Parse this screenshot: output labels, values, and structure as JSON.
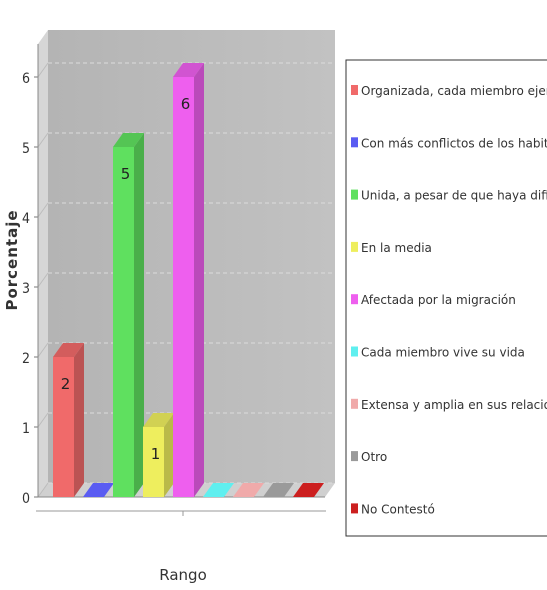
{
  "chart_data": {
    "type": "bar",
    "style": "3d-columns",
    "title": "",
    "xlabel": "Rango",
    "ylabel": "Porcentaje",
    "ylim": [
      0,
      6
    ],
    "yticks": [
      0,
      1,
      2,
      3,
      4,
      5,
      6
    ],
    "grid": true,
    "legend_position": "right",
    "categories": [
      "Organizada, cada miembro ejerce su función",
      "Con más conflictos de los habituales",
      "Unida, a pesar de que haya dificultades",
      "En la media",
      "Afectada por la migración",
      "Cada miembro vive su vida",
      "Extensa y amplia en sus relaciones",
      "Otro",
      "No Contestó"
    ],
    "values": [
      2,
      0,
      5,
      1,
      6,
      0,
      0,
      0,
      0
    ],
    "data_labels": [
      "2",
      "",
      "5",
      "1",
      "6",
      "",
      "",
      "",
      ""
    ],
    "colors": [
      "#f06a6a",
      "#5a5cf2",
      "#5fe05f",
      "#eeee5e",
      "#ee5fee",
      "#5fefef",
      "#f0aaaa",
      "#9a9a9a",
      "#cc1f1f"
    ],
    "legend_label": "Organizada, cada miembro ejerce su funció"
  }
}
